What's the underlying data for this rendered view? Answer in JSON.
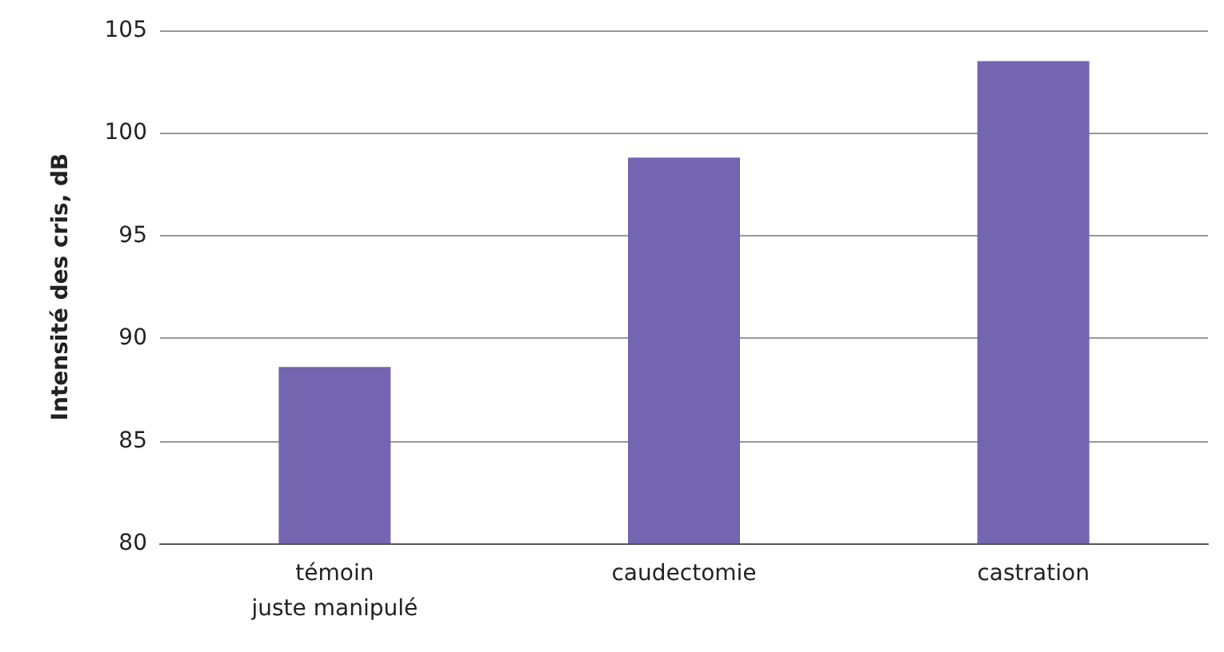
{
  "chart_data": {
    "type": "bar",
    "ylabel": "Intensité des cris, dB",
    "categories": [
      "témoin\njuste manipulé",
      "caudectomie",
      "castration"
    ],
    "values": [
      88.6,
      98.8,
      103.5
    ],
    "color": "#7465b0",
    "ylim": [
      80,
      105
    ],
    "yticks": [
      80,
      85,
      90,
      95,
      100,
      105
    ],
    "grid": "y"
  }
}
